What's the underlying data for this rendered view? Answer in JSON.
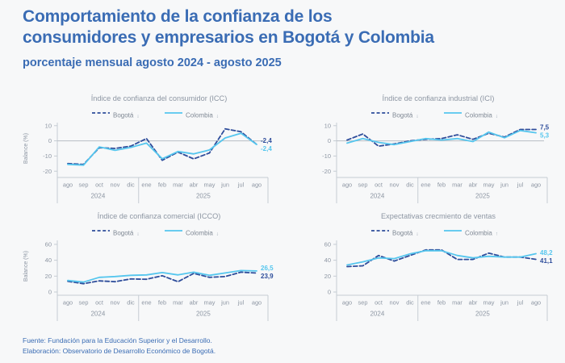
{
  "header": {
    "title_line1": "Comportamiento de la confianza de los",
    "title_line2": "consumidores y empresarios en Bogotá y Colombia",
    "subtitle": "porcentaje mensual agosto 2024 - agosto 2025"
  },
  "footer": {
    "source": "Fuente: Fundación para la Educación Superior y el Desarrollo.",
    "elaboration": "Elaboración: Observatorio de Desarrollo Económico de Bogotá."
  },
  "colors": {
    "title_blue": "#3a6cb4",
    "bogota": "#2e4d9b",
    "colombia": "#55c6ee",
    "text_gray": "#8d96a3",
    "legend_gray": "#7f8894",
    "arrow_gray": "#9aa6b2",
    "axis_line": "#c6ccd3",
    "zero_line": "#b7bec6",
    "background": "#f7f8f9"
  },
  "chart_data": [
    {
      "type": "line",
      "title": "Índice de confianza del consumidor (ICC)",
      "ylabel": "Balance (%)",
      "categories": [
        "ago",
        "sep",
        "oct",
        "nov",
        "dic",
        "ene",
        "feb",
        "mar",
        "abr",
        "may",
        "jun",
        "jul",
        "ago"
      ],
      "years": [
        {
          "label": "2024",
          "span": 5
        },
        {
          "label": "2025",
          "span": 8
        }
      ],
      "yticks": [
        10,
        0,
        -10,
        -20
      ],
      "ylim": [
        -22,
        12
      ],
      "zero_line": true,
      "legend_position": "top",
      "grid": false,
      "series": [
        {
          "name": "Bogotá",
          "arrow": "↓",
          "style": "dashed",
          "color_key": "bogota",
          "values": [
            -15,
            -15.5,
            -4.5,
            -5,
            -3.5,
            1.5,
            -12.8,
            -7.4,
            -11.9,
            -8,
            7.9,
            6,
            -2.4
          ],
          "end_label": "-2,4"
        },
        {
          "name": "Colombia",
          "arrow": "↓",
          "style": "solid",
          "color_key": "colombia",
          "values": [
            -15.5,
            -16,
            -4,
            -6.3,
            -4.3,
            -1.5,
            -11.8,
            -7,
            -8.6,
            -6,
            1.9,
            5,
            -2.4
          ],
          "end_label": "-2,4"
        }
      ]
    },
    {
      "type": "line",
      "title": "Índice de confianza industrial (ICI)",
      "ylabel": "",
      "categories": [
        "ago",
        "sep",
        "oct",
        "nov",
        "dic",
        "ene",
        "feb",
        "mar",
        "abr",
        "may",
        "jun",
        "jul",
        "ago"
      ],
      "years": [
        {
          "label": "2024",
          "span": 5
        },
        {
          "label": "2025",
          "span": 8
        }
      ],
      "yticks": [
        10,
        0,
        -10,
        -20
      ],
      "ylim": [
        -22,
        12
      ],
      "zero_line": true,
      "legend_position": "top",
      "grid": false,
      "series": [
        {
          "name": "Bogotá",
          "arrow": "↓",
          "style": "dashed",
          "color_key": "bogota",
          "values": [
            0.5,
            4.5,
            -3.5,
            -2,
            0,
            1,
            1.5,
            4,
            1,
            5,
            2.5,
            7.5,
            7.5
          ],
          "end_label": "7,5"
        },
        {
          "name": "Colombia",
          "arrow": "↓",
          "style": "solid",
          "color_key": "colombia",
          "values": [
            -1.5,
            1.5,
            -1,
            -2.5,
            -0.5,
            1.5,
            0.5,
            1.5,
            -0.5,
            5.8,
            2,
            6.8,
            5.3
          ],
          "end_label": "5,3"
        }
      ]
    },
    {
      "type": "line",
      "title": "Índice de confianza comercial (ICCO)",
      "ylabel": "Balance (%)",
      "categories": [
        "ago",
        "sep",
        "oct",
        "nov",
        "dic",
        "ene",
        "feb",
        "mar",
        "abr",
        "may",
        "jun",
        "jul",
        "ago"
      ],
      "years": [
        {
          "label": "2024",
          "span": 5
        },
        {
          "label": "2025",
          "span": 8
        }
      ],
      "yticks": [
        60,
        40,
        20,
        0
      ],
      "ylim": [
        0,
        65
      ],
      "zero_line": false,
      "legend_position": "top",
      "grid": false,
      "series": [
        {
          "name": "Bogotá",
          "arrow": "↓",
          "style": "dashed",
          "color_key": "bogota",
          "values": [
            13.5,
            10.5,
            14,
            13,
            16.5,
            16,
            20.5,
            13,
            23.5,
            18.5,
            19.5,
            25,
            23.9
          ],
          "end_label": "23,9"
        },
        {
          "name": "Colombia",
          "arrow": "↓",
          "style": "solid",
          "color_key": "colombia",
          "values": [
            14.5,
            12.5,
            18.5,
            19.5,
            21,
            21.5,
            24.5,
            21.5,
            25,
            21,
            24,
            27,
            26.5
          ],
          "end_label": "26,5"
        }
      ]
    },
    {
      "type": "line",
      "title": "Expectativas crecmiento de ventas",
      "ylabel": "",
      "categories": [
        "ago",
        "sep",
        "oct",
        "nov",
        "dic",
        "ene",
        "feb",
        "mar",
        "abr",
        "may",
        "jun",
        "jul",
        "ago"
      ],
      "years": [
        {
          "label": "2024",
          "span": 5
        },
        {
          "label": "2025",
          "span": 8
        }
      ],
      "yticks": [
        60,
        40,
        20,
        0
      ],
      "ylim": [
        0,
        65
      ],
      "zero_line": false,
      "legend_position": "top",
      "grid": false,
      "series": [
        {
          "name": "Bogotá",
          "arrow": "↓",
          "style": "dashed",
          "color_key": "bogota",
          "values": [
            32,
            33,
            46,
            39,
            46,
            53,
            53,
            41,
            41,
            49,
            44,
            44,
            41.1
          ],
          "end_label": "41,1"
        },
        {
          "name": "Colombia",
          "arrow": "↑",
          "style": "solid",
          "color_key": "colombia",
          "values": [
            34,
            38,
            43,
            42,
            48,
            52,
            52,
            46,
            43,
            45,
            44,
            44,
            48.2
          ],
          "end_label": "48,2"
        }
      ]
    }
  ]
}
